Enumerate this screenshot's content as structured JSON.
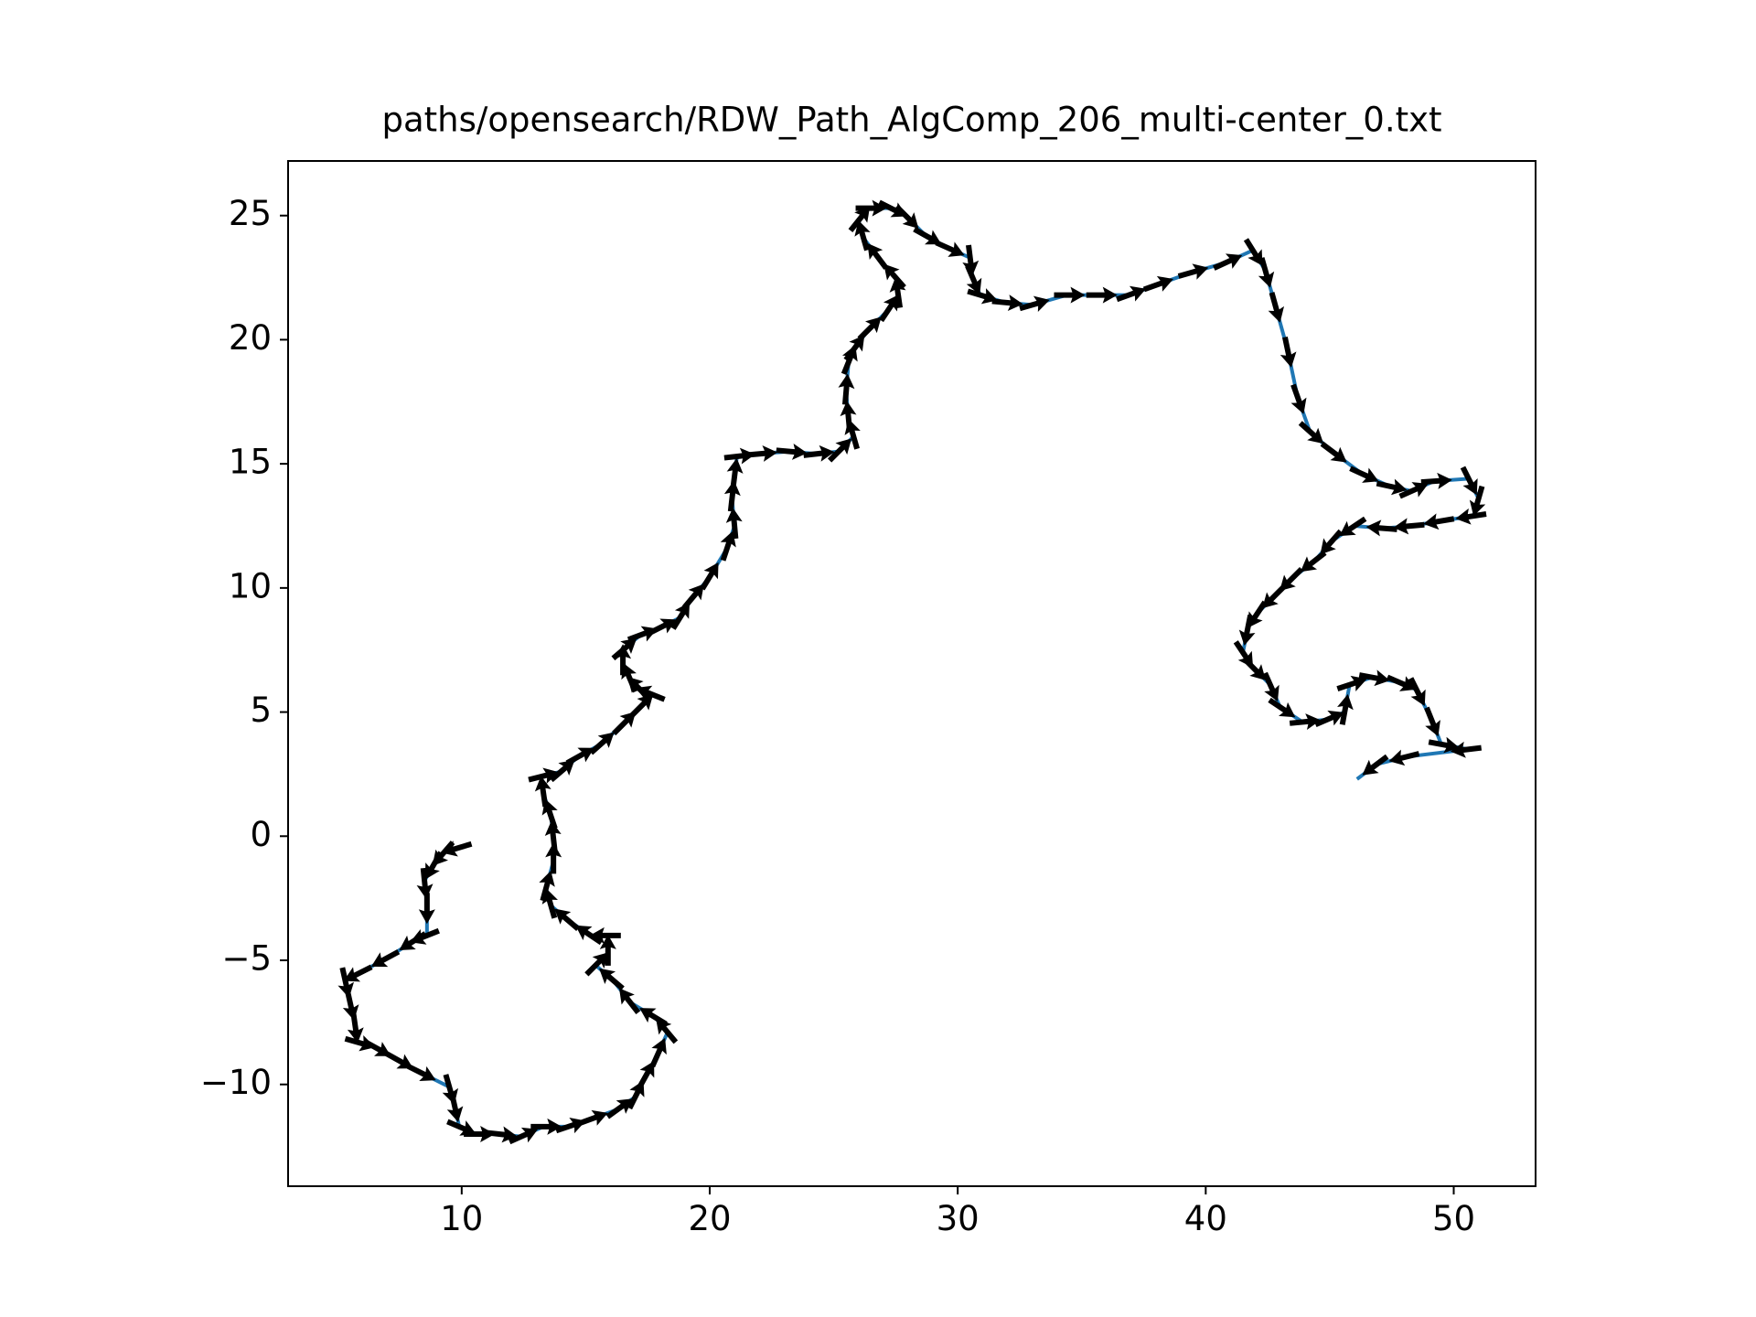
{
  "chart_data": {
    "type": "line",
    "title": "paths/opensearch/RDW_Path_AlgComp_206_multi-center_0.txt",
    "series": [
      {
        "color": "#1f77b4",
        "x": [
          9.9,
          9.3,
          8.9,
          8.5,
          8.6,
          8.6,
          8.1,
          7.0,
          5.9,
          5.3,
          5.5,
          5.7,
          5.8,
          6.5,
          7.4,
          8.3,
          9.5,
          9.7,
          9.9,
          10.6,
          11.5,
          12.4,
          13.3,
          14.3,
          15.2,
          16.3,
          17.0,
          17.4,
          17.9,
          18.3,
          17.8,
          16.8,
          16.1,
          15.4,
          15.9,
          15.9,
          15.2,
          14.3,
          13.6,
          13.4,
          13.7,
          13.7,
          13.6,
          13.3,
          13.2,
          14.0,
          14.7,
          15.6,
          16.5,
          17.2,
          17.7,
          17.2,
          16.8,
          16.5,
          16.5,
          17.2,
          18.0,
          18.8,
          19.3,
          19.97,
          20.7,
          21.0,
          20.9,
          21.0,
          21.1,
          22.0,
          23.2,
          24.3,
          25.2,
          25.8,
          25.6,
          25.5,
          25.6,
          25.8,
          26.4,
          27.2,
          27.6,
          27.5,
          26.8,
          26.2,
          26.0,
          26.4,
          27.3,
          27.9,
          28.7,
          29.6,
          30.5,
          30.6,
          30.9,
          31.9,
          33.0,
          34.4,
          35.7,
          36.9,
          38.0,
          39.4,
          40.8,
          41.9,
          42.4,
          42.8,
          43.3,
          43.7,
          44.2,
          45.1,
          46.3,
          47.4,
          48.3,
          49.2,
          50.6,
          51.0,
          50.8,
          49.5,
          48.3,
          47.2,
          46.0,
          45.1,
          44.4,
          43.5,
          42.8,
          42.1,
          41.7,
          41.5,
          41.9,
          42.6,
          43.0,
          43.9,
          44.9,
          45.6,
          45.8,
          46.7,
          47.8,
          48.5,
          49.1,
          49.5,
          50.6,
          48.1,
          46.9,
          46.1
        ],
        "values": [
          -0.46,
          -0.64,
          -1.1,
          -1.8,
          -2.8,
          -4.0,
          -4.2,
          -4.9,
          -5.5,
          -5.8,
          -6.7,
          -7.6,
          -8.3,
          -8.5,
          -9.0,
          -9.5,
          -10.1,
          -10.8,
          -11.7,
          -12.0,
          -12.0,
          -12.1,
          -11.7,
          -11.7,
          -11.4,
          -11.0,
          -10.5,
          -9.7,
          -8.8,
          -7.9,
          -7.3,
          -6.7,
          -5.8,
          -5.2,
          -4.7,
          -4.0,
          -4.0,
          -3.4,
          -2.8,
          -2.1,
          -1.0,
          -0.1,
          0.8,
          1.7,
          2.4,
          2.6,
          3.2,
          3.7,
          4.5,
          5.2,
          5.7,
          5.9,
          6.3,
          7.0,
          7.5,
          8.1,
          8.4,
          8.8,
          9.6,
          10.4,
          11.6,
          12.5,
          13.6,
          14.5,
          15.3,
          15.4,
          15.5,
          15.4,
          15.5,
          16.1,
          16.8,
          17.9,
          19.1,
          19.6,
          20.4,
          21.2,
          21.8,
          22.5,
          23.3,
          24.1,
          24.8,
          25.3,
          25.3,
          25.0,
          24.2,
          23.7,
          23.3,
          22.5,
          21.8,
          21.5,
          21.4,
          21.8,
          21.8,
          21.8,
          22.2,
          22.7,
          23.1,
          23.6,
          22.8,
          21.4,
          19.6,
          17.7,
          16.3,
          15.5,
          14.6,
          14.1,
          13.9,
          14.3,
          14.4,
          13.6,
          12.9,
          12.7,
          12.5,
          12.4,
          12.5,
          11.9,
          11.1,
          10.4,
          9.7,
          9.0,
          8.4,
          7.4,
          6.8,
          6.1,
          5.2,
          4.6,
          4.7,
          5.0,
          6.1,
          6.4,
          6.2,
          5.9,
          4.7,
          3.7,
          3.5,
          3.2,
          2.9,
          2.3
        ]
      }
    ],
    "xlim": [
      3.0,
      53.3
    ],
    "ylim": [
      -14.1,
      27.2
    ],
    "xticks": [
      10,
      20,
      30,
      40,
      50
    ],
    "yticks": [
      {
        "value": -10,
        "label": "−10"
      },
      {
        "value": -5,
        "label": "−5"
      },
      0,
      5,
      10,
      15,
      20,
      25
    ],
    "arrow_color": "#000000"
  }
}
